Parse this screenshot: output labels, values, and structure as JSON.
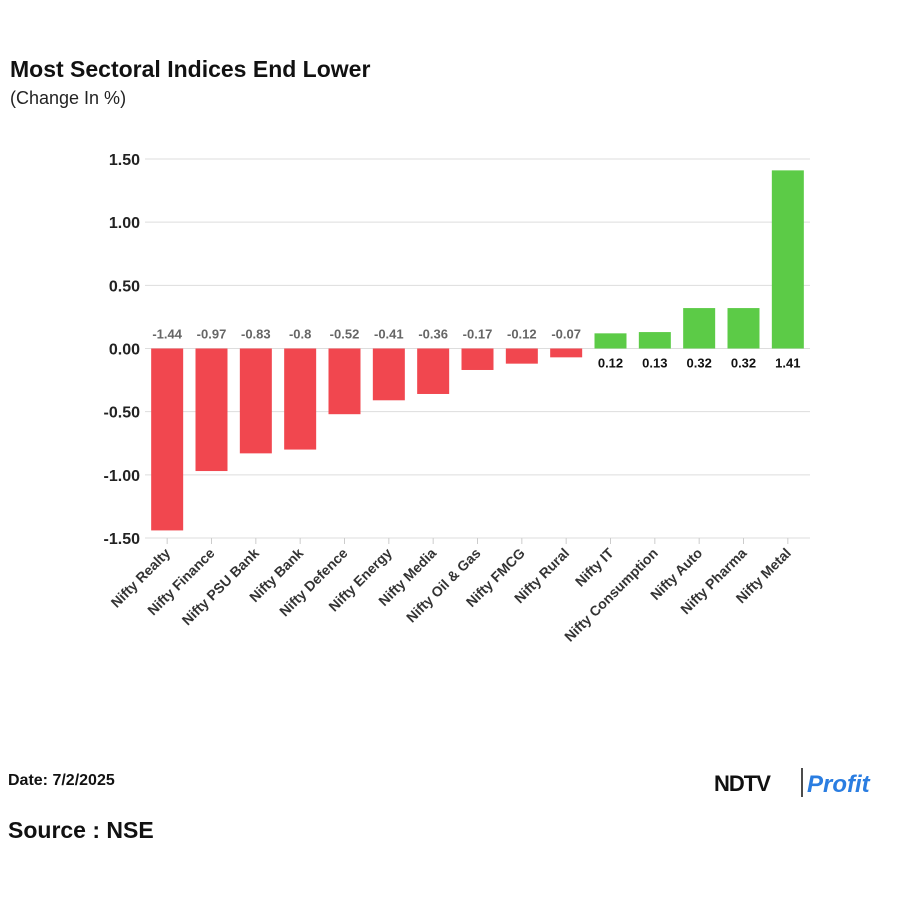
{
  "chart_data": {
    "type": "bar",
    "title": "Most Sectoral Indices End Lower",
    "subtitle": "(Change In %)",
    "categories": [
      "Nifty Realty",
      "Nifty Finance",
      "Nifty PSU Bank",
      "Nifty Bank",
      "Nifty Defence",
      "Nifty Energy",
      "Nifty Media",
      "Nifty Oil & Gas",
      "Nifty FMCG",
      "Nifty Rural",
      "Nifty IT",
      "Nifty Consumption",
      "Nifty Auto",
      "Nifty Pharma",
      "Nifty Metal"
    ],
    "values": [
      -1.44,
      -0.97,
      -0.83,
      -0.8,
      -0.52,
      -0.41,
      -0.36,
      -0.17,
      -0.12,
      -0.07,
      0.12,
      0.13,
      0.32,
      0.32,
      1.41
    ],
    "positive_color": "#5ccb47",
    "negative_color": "#f1474f",
    "ylim": [
      -1.5,
      1.5
    ],
    "yticks": [
      {
        "value": -1.5,
        "label": "-1.50"
      },
      {
        "value": -1,
        "label": "-1.00"
      },
      {
        "value": -0.5,
        "label": "-0.50"
      },
      {
        "value": 0,
        "label": "0.00"
      },
      {
        "value": 0.5,
        "label": "0.50"
      },
      {
        "value": 1,
        "label": "1.00"
      },
      {
        "value": 1.5,
        "label": "1.50"
      }
    ],
    "grid": true
  },
  "footer": {
    "date": "Date: 7/2/2025",
    "source": "Source : NSE"
  },
  "logo": {
    "brand": "NDTV",
    "product": "Profit"
  }
}
